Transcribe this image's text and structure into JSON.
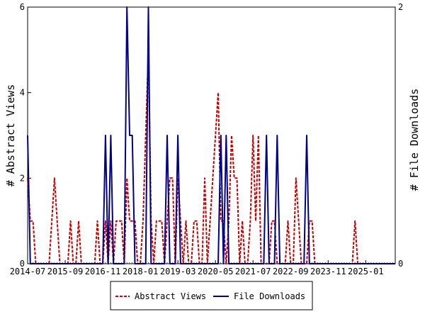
{
  "chart_data": {
    "type": "line",
    "xlabel": "",
    "ylabel_left": "# Abstract Views",
    "ylabel_right": "# File Downloads",
    "x_tick_labels": [
      "2014-07",
      "2015-09",
      "2016-11",
      "2018-01",
      "2019-03",
      "2020-05",
      "2021-07",
      "2022-09",
      "2023-11",
      "2025-01"
    ],
    "y_left_ticks": [
      "0",
      "2",
      "4",
      "6"
    ],
    "y_right_ticks": [
      "0",
      "2"
    ],
    "ylim_left": [
      0,
      6
    ],
    "ylim_right": [
      0,
      2
    ],
    "x_range": [
      "2014-07",
      "2025-12"
    ],
    "legend_position": "bottom",
    "grid": false,
    "series": [
      {
        "name": "Abstract Views",
        "axis": "left",
        "color": "#cc0000",
        "style": "dashed",
        "points": [
          [
            "2014-07",
            2
          ],
          [
            "2014-08",
            1
          ],
          [
            "2014-09",
            1
          ],
          [
            "2014-10",
            0
          ],
          [
            "2014-11",
            0
          ],
          [
            "2014-12",
            0
          ],
          [
            "2015-01",
            0
          ],
          [
            "2015-02",
            0
          ],
          [
            "2015-03",
            0
          ],
          [
            "2015-04",
            1
          ],
          [
            "2015-05",
            2
          ],
          [
            "2015-06",
            1
          ],
          [
            "2015-07",
            0
          ],
          [
            "2015-08",
            0
          ],
          [
            "2015-09",
            0
          ],
          [
            "2015-10",
            0
          ],
          [
            "2015-11",
            1
          ],
          [
            "2015-12",
            0
          ],
          [
            "2016-01",
            0
          ],
          [
            "2016-02",
            1
          ],
          [
            "2016-03",
            0
          ],
          [
            "2016-04",
            0
          ],
          [
            "2016-05",
            0
          ],
          [
            "2016-06",
            0
          ],
          [
            "2016-07",
            0
          ],
          [
            "2016-08",
            0
          ],
          [
            "2016-09",
            1
          ],
          [
            "2016-10",
            0
          ],
          [
            "2016-11",
            0
          ],
          [
            "2016-12",
            1
          ],
          [
            "2017-01",
            0
          ],
          [
            "2017-02",
            1
          ],
          [
            "2017-03",
            0
          ],
          [
            "2017-04",
            1
          ],
          [
            "2017-05",
            1
          ],
          [
            "2017-06",
            1
          ],
          [
            "2017-07",
            0
          ],
          [
            "2017-08",
            2
          ],
          [
            "2017-09",
            1
          ],
          [
            "2017-10",
            1
          ],
          [
            "2017-11",
            1
          ],
          [
            "2017-12",
            0
          ],
          [
            "2018-01",
            0
          ],
          [
            "2018-02",
            1
          ],
          [
            "2018-03",
            3
          ],
          [
            "2018-04",
            5
          ],
          [
            "2018-05",
            1
          ],
          [
            "2018-06",
            0
          ],
          [
            "2018-07",
            1
          ],
          [
            "2018-08",
            1
          ],
          [
            "2018-09",
            1
          ],
          [
            "2018-10",
            0
          ],
          [
            "2018-11",
            1
          ],
          [
            "2018-12",
            2
          ],
          [
            "2019-01",
            2
          ],
          [
            "2019-02",
            0
          ],
          [
            "2019-03",
            2
          ],
          [
            "2019-04",
            1
          ],
          [
            "2019-05",
            0
          ],
          [
            "2019-06",
            1
          ],
          [
            "2019-07",
            0
          ],
          [
            "2019-08",
            0
          ],
          [
            "2019-09",
            1
          ],
          [
            "2019-10",
            1
          ],
          [
            "2019-11",
            0
          ],
          [
            "2019-12",
            0
          ],
          [
            "2020-01",
            2
          ],
          [
            "2020-02",
            0
          ],
          [
            "2020-03",
            1
          ],
          [
            "2020-04",
            2
          ],
          [
            "2020-05",
            3
          ],
          [
            "2020-06",
            4
          ],
          [
            "2020-07",
            1
          ],
          [
            "2020-08",
            1
          ],
          [
            "2020-09",
            0
          ],
          [
            "2020-10",
            1
          ],
          [
            "2020-11",
            3
          ],
          [
            "2020-12",
            2
          ],
          [
            "2021-01",
            2
          ],
          [
            "2021-02",
            0
          ],
          [
            "2021-03",
            1
          ],
          [
            "2021-04",
            0
          ],
          [
            "2021-05",
            0
          ],
          [
            "2021-06",
            1
          ],
          [
            "2021-07",
            3
          ],
          [
            "2021-08",
            1
          ],
          [
            "2021-09",
            3
          ],
          [
            "2021-10",
            0
          ],
          [
            "2021-11",
            0
          ],
          [
            "2021-12",
            0
          ],
          [
            "2022-01",
            0
          ],
          [
            "2022-02",
            1
          ],
          [
            "2022-03",
            1
          ],
          [
            "2022-04",
            0
          ],
          [
            "2022-05",
            0
          ],
          [
            "2022-06",
            0
          ],
          [
            "2022-07",
            0
          ],
          [
            "2022-08",
            1
          ],
          [
            "2022-09",
            0
          ],
          [
            "2022-10",
            0
          ],
          [
            "2022-11",
            2
          ],
          [
            "2022-12",
            1
          ],
          [
            "2023-01",
            0
          ],
          [
            "2023-02",
            0
          ],
          [
            "2023-03",
            0
          ],
          [
            "2023-04",
            1
          ],
          [
            "2023-05",
            1
          ],
          [
            "2023-06",
            0
          ],
          [
            "2023-07",
            0
          ],
          [
            "2023-08",
            0
          ],
          [
            "2023-09",
            0
          ],
          [
            "2023-10",
            0
          ],
          [
            "2023-11",
            0
          ],
          [
            "2023-12",
            0
          ],
          [
            "2024-01",
            0
          ],
          [
            "2024-02",
            0
          ],
          [
            "2024-03",
            0
          ],
          [
            "2024-04",
            0
          ],
          [
            "2024-05",
            0
          ],
          [
            "2024-06",
            0
          ],
          [
            "2024-07",
            0
          ],
          [
            "2024-08",
            0
          ],
          [
            "2024-09",
            1
          ],
          [
            "2024-10",
            0
          ],
          [
            "2024-11",
            0
          ],
          [
            "2024-12",
            0
          ],
          [
            "2025-01",
            0
          ],
          [
            "2025-02",
            0
          ],
          [
            "2025-03",
            0
          ],
          [
            "2025-04",
            0
          ],
          [
            "2025-05",
            0
          ],
          [
            "2025-06",
            0
          ],
          [
            "2025-07",
            0
          ],
          [
            "2025-08",
            0
          ],
          [
            "2025-09",
            0
          ],
          [
            "2025-10",
            0
          ],
          [
            "2025-11",
            0
          ],
          [
            "2025-12",
            0
          ]
        ]
      },
      {
        "name": "File Downloads",
        "axis": "right",
        "color": "#00008b",
        "style": "solid",
        "points": [
          [
            "2014-07",
            1
          ],
          [
            "2014-08",
            0
          ],
          [
            "2014-09",
            0
          ],
          [
            "2014-10",
            0
          ],
          [
            "2014-11",
            0
          ],
          [
            "2014-12",
            0
          ],
          [
            "2015-01",
            0
          ],
          [
            "2015-02",
            0
          ],
          [
            "2015-03",
            0
          ],
          [
            "2015-04",
            0
          ],
          [
            "2015-05",
            0
          ],
          [
            "2015-06",
            0
          ],
          [
            "2015-07",
            0
          ],
          [
            "2015-08",
            0
          ],
          [
            "2015-09",
            0
          ],
          [
            "2015-10",
            0
          ],
          [
            "2015-11",
            0
          ],
          [
            "2015-12",
            0
          ],
          [
            "2016-01",
            0
          ],
          [
            "2016-02",
            0
          ],
          [
            "2016-03",
            0
          ],
          [
            "2016-04",
            0
          ],
          [
            "2016-05",
            0
          ],
          [
            "2016-06",
            0
          ],
          [
            "2016-07",
            0
          ],
          [
            "2016-08",
            0
          ],
          [
            "2016-09",
            0
          ],
          [
            "2016-10",
            0
          ],
          [
            "2016-11",
            0
          ],
          [
            "2016-12",
            1
          ],
          [
            "2017-01",
            0
          ],
          [
            "2017-02",
            1
          ],
          [
            "2017-03",
            0
          ],
          [
            "2017-04",
            0
          ],
          [
            "2017-05",
            0
          ],
          [
            "2017-06",
            0
          ],
          [
            "2017-07",
            0
          ],
          [
            "2017-08",
            2
          ],
          [
            "2017-09",
            1
          ],
          [
            "2017-10",
            1
          ],
          [
            "2017-11",
            0
          ],
          [
            "2017-12",
            0
          ],
          [
            "2018-01",
            0
          ],
          [
            "2018-02",
            0
          ],
          [
            "2018-03",
            0
          ],
          [
            "2018-04",
            2
          ],
          [
            "2018-05",
            0
          ],
          [
            "2018-06",
            0
          ],
          [
            "2018-07",
            0
          ],
          [
            "2018-08",
            0
          ],
          [
            "2018-09",
            0
          ],
          [
            "2018-10",
            0
          ],
          [
            "2018-11",
            1
          ],
          [
            "2018-12",
            0
          ],
          [
            "2019-01",
            0
          ],
          [
            "2019-02",
            0
          ],
          [
            "2019-03",
            1
          ],
          [
            "2019-04",
            0
          ],
          [
            "2019-05",
            0
          ],
          [
            "2019-06",
            0
          ],
          [
            "2019-07",
            0
          ],
          [
            "2019-08",
            0
          ],
          [
            "2019-09",
            0
          ],
          [
            "2019-10",
            0
          ],
          [
            "2019-11",
            0
          ],
          [
            "2019-12",
            0
          ],
          [
            "2020-01",
            0
          ],
          [
            "2020-02",
            0
          ],
          [
            "2020-03",
            0
          ],
          [
            "2020-04",
            0
          ],
          [
            "2020-05",
            0
          ],
          [
            "2020-06",
            0
          ],
          [
            "2020-07",
            1
          ],
          [
            "2020-08",
            0
          ],
          [
            "2020-09",
            1
          ],
          [
            "2020-10",
            0
          ],
          [
            "2020-11",
            0
          ],
          [
            "2020-12",
            0
          ],
          [
            "2021-01",
            0
          ],
          [
            "2021-02",
            0
          ],
          [
            "2021-03",
            0
          ],
          [
            "2021-04",
            0
          ],
          [
            "2021-05",
            0
          ],
          [
            "2021-06",
            0
          ],
          [
            "2021-07",
            0
          ],
          [
            "2021-08",
            0
          ],
          [
            "2021-09",
            0
          ],
          [
            "2021-10",
            0
          ],
          [
            "2021-11",
            0
          ],
          [
            "2021-12",
            1
          ],
          [
            "2022-01",
            0
          ],
          [
            "2022-02",
            0
          ],
          [
            "2022-03",
            0
          ],
          [
            "2022-04",
            1
          ],
          [
            "2022-05",
            0
          ],
          [
            "2022-06",
            0
          ],
          [
            "2022-07",
            0
          ],
          [
            "2022-08",
            0
          ],
          [
            "2022-09",
            0
          ],
          [
            "2022-10",
            0
          ],
          [
            "2022-11",
            0
          ],
          [
            "2022-12",
            0
          ],
          [
            "2023-01",
            0
          ],
          [
            "2023-02",
            0
          ],
          [
            "2023-03",
            1
          ],
          [
            "2023-04",
            0
          ],
          [
            "2023-05",
            0
          ],
          [
            "2023-06",
            0
          ],
          [
            "2023-07",
            0
          ],
          [
            "2023-08",
            0
          ],
          [
            "2023-09",
            0
          ],
          [
            "2023-10",
            0
          ],
          [
            "2023-11",
            0
          ],
          [
            "2023-12",
            0
          ],
          [
            "2024-01",
            0
          ],
          [
            "2024-02",
            0
          ],
          [
            "2024-03",
            0
          ],
          [
            "2024-04",
            0
          ],
          [
            "2024-05",
            0
          ],
          [
            "2024-06",
            0
          ],
          [
            "2024-07",
            0
          ],
          [
            "2024-08",
            0
          ],
          [
            "2024-09",
            0
          ],
          [
            "2024-10",
            0
          ],
          [
            "2024-11",
            0
          ],
          [
            "2024-12",
            0
          ],
          [
            "2025-01",
            0
          ],
          [
            "2025-02",
            0
          ],
          [
            "2025-03",
            0
          ],
          [
            "2025-04",
            0
          ],
          [
            "2025-05",
            0
          ],
          [
            "2025-06",
            0
          ],
          [
            "2025-07",
            0
          ],
          [
            "2025-08",
            0
          ],
          [
            "2025-09",
            0
          ],
          [
            "2025-10",
            0
          ],
          [
            "2025-11",
            0
          ],
          [
            "2025-12",
            0
          ]
        ]
      }
    ]
  }
}
